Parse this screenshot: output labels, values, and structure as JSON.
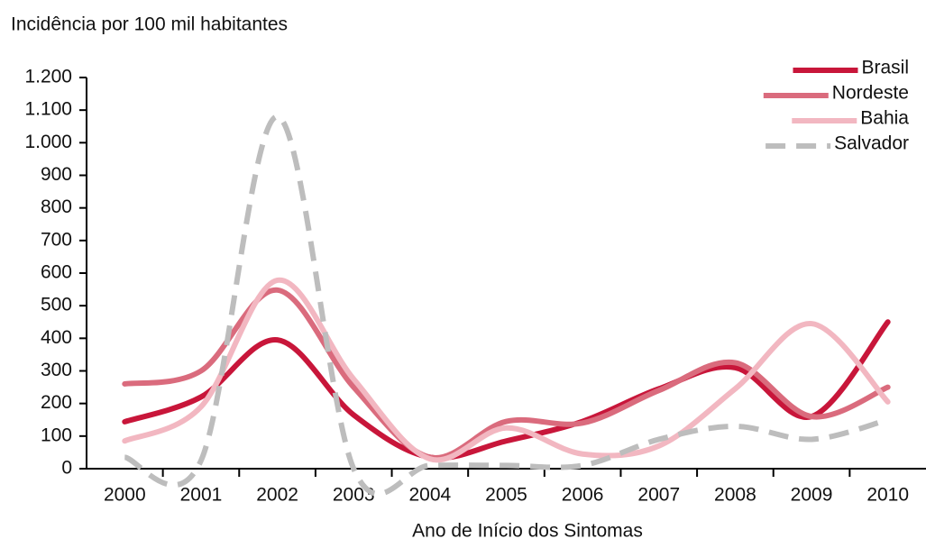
{
  "chart_data": {
    "type": "line",
    "title": "Incidência por 100 mil habitantes",
    "x_label": "Ano de Início dos Sintomas",
    "categories": [
      "2000",
      "2001",
      "2002",
      "2003",
      "2004",
      "2005",
      "2006",
      "2007",
      "2008",
      "2009",
      "2010"
    ],
    "series": [
      {
        "name": "Brasil",
        "color": "#c8163a",
        "dashed": false,
        "values": [
          144,
          220,
          395,
          165,
          35,
          85,
          145,
          245,
          310,
          160,
          450
        ]
      },
      {
        "name": "Nordeste",
        "color": "#da6b7d",
        "dashed": false,
        "values": [
          260,
          300,
          548,
          250,
          35,
          145,
          140,
          240,
          325,
          160,
          250
        ]
      },
      {
        "name": "Bahia",
        "color": "#f2b7c1",
        "dashed": false,
        "values": [
          85,
          190,
          578,
          275,
          30,
          125,
          45,
          70,
          245,
          445,
          205
        ]
      },
      {
        "name": "Salvador",
        "color": "#bdbdbd",
        "dashed": true,
        "values": [
          35,
          25,
          1080,
          0,
          10,
          10,
          10,
          90,
          130,
          90,
          150
        ]
      }
    ],
    "ylim": [
      0,
      1200
    ],
    "yticks": [
      0,
      100,
      200,
      300,
      400,
      500,
      600,
      700,
      800,
      900,
      {
        "value": 1000,
        "label": "1.000"
      },
      {
        "value": 1100,
        "label": "1.100"
      },
      {
        "value": 1200,
        "label": "1.200"
      }
    ],
    "legend": "top-right",
    "grid": false
  }
}
